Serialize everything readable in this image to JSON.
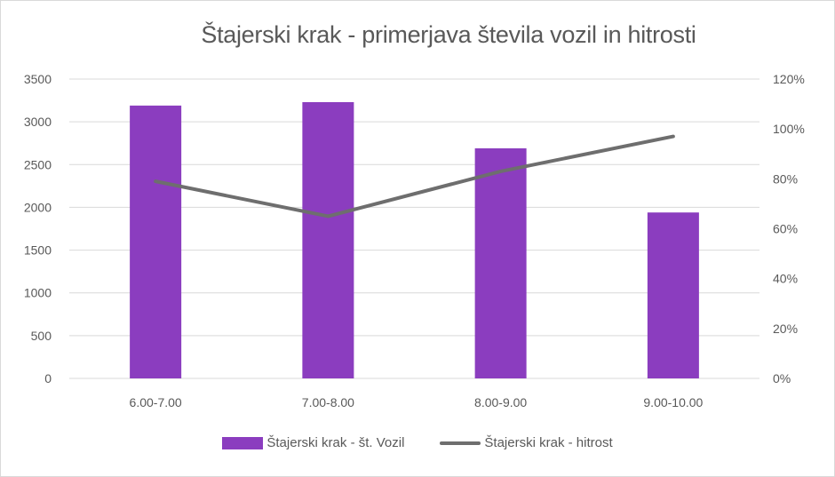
{
  "chart_data": {
    "type": "bar+line",
    "title": "Štajerski krak - primerjava števila vozil in hitrosti",
    "categories": [
      "6.00-7.00",
      "7.00-8.00",
      "8.00-9.00",
      "9.00-10.00"
    ],
    "series": [
      {
        "name": "Štajerski krak - št. Vozil",
        "type": "bar",
        "axis": "left",
        "color": "#8B3DBF",
        "values": [
          3190,
          3230,
          2690,
          1940
        ]
      },
      {
        "name": "Štajerski krak - hitrost",
        "type": "line",
        "axis": "right",
        "color": "#6E6E6E",
        "values": [
          0.79,
          0.65,
          0.83,
          0.97
        ]
      }
    ],
    "y_left": {
      "min": 0,
      "max": 3500,
      "ticks": [
        "0",
        "500",
        "1000",
        "1500",
        "2000",
        "2500",
        "3000",
        "3500"
      ]
    },
    "y_right": {
      "min": 0,
      "max": 1.2,
      "ticks": [
        "0%",
        "20%",
        "40%",
        "60%",
        "80%",
        "100%",
        "120%"
      ]
    },
    "xlabel": "",
    "ylabel": "",
    "grid": true,
    "legend_position": "bottom"
  },
  "legend": {
    "bar_label": "Štajerski krak - št. Vozil",
    "line_label": "Štajerski krak - hitrost"
  }
}
